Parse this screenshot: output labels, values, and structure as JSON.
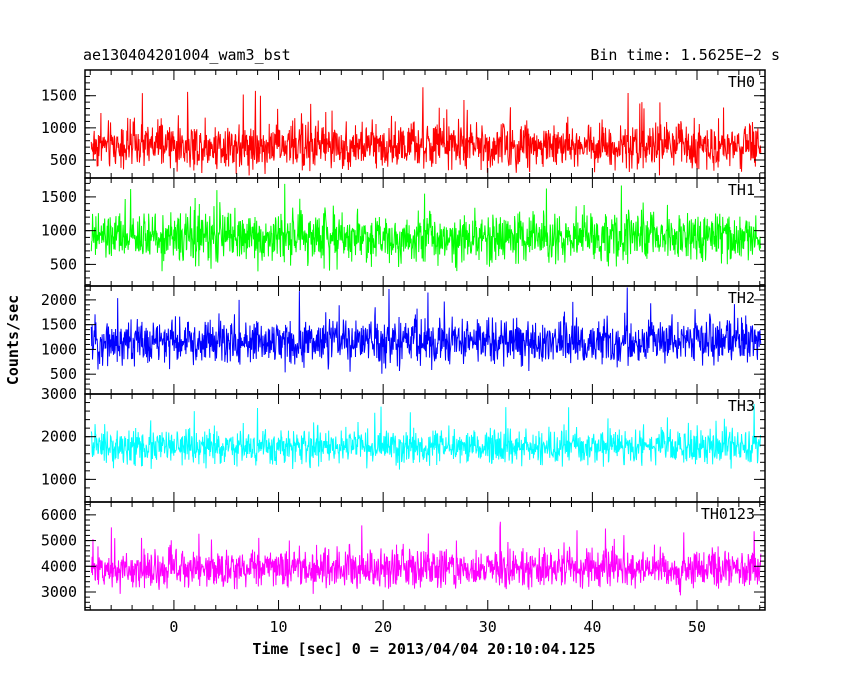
{
  "header": {
    "left_title": "ae130404201004_wam3_bst",
    "right_title": "Bin time: 1.5625E−2 s"
  },
  "chart_data": {
    "type": "line",
    "xlabel": "Time [sec] 0 = 2013/04/04 20:10:04.125",
    "ylabel": "Counts/sec",
    "xlim": [
      -8.5,
      56.5
    ],
    "data_x_range": [
      -7.9,
      56.1
    ],
    "x_ticks": [
      0,
      10,
      20,
      30,
      40,
      50
    ],
    "x_minor_step": 2,
    "panels": [
      {
        "name": "TH0",
        "color": "#ff0000",
        "ylim": [
          220,
          1900
        ],
        "y_ticks": [
          500,
          1000,
          1500
        ],
        "y_minor_step": 100,
        "mean": 720,
        "amplitude": 380,
        "peak_max": 1850,
        "floor_min": 260
      },
      {
        "name": "TH1",
        "color": "#00ff00",
        "ylim": [
          180,
          1780
        ],
        "y_ticks": [
          500,
          1000,
          1500
        ],
        "y_minor_step": 100,
        "mean": 900,
        "amplitude": 380,
        "peak_max": 1760,
        "floor_min": 200
      },
      {
        "name": "TH2",
        "color": "#0000ff",
        "ylim": [
          100,
          2280
        ],
        "y_ticks": [
          500,
          1000,
          1500,
          2000
        ],
        "y_minor_step": 100,
        "mean": 1150,
        "amplitude": 480,
        "peak_max": 2250,
        "floor_min": 150
      },
      {
        "name": "TH3",
        "color": "#00ffff",
        "ylim": [
          470,
          3000
        ],
        "y_ticks": [
          1000,
          2000,
          3000
        ],
        "y_minor_step": 200,
        "mean": 1750,
        "amplitude": 430,
        "peak_max": 3000,
        "floor_min": 500
      },
      {
        "name": "TH0123",
        "color": "#ff00ff",
        "ylim": [
          2300,
          6500
        ],
        "y_ticks": [
          3000,
          4000,
          5000,
          6000
        ],
        "y_minor_step": 200,
        "mean": 3900,
        "amplitude": 780,
        "peak_max": 6400,
        "floor_min": 2350
      }
    ]
  }
}
